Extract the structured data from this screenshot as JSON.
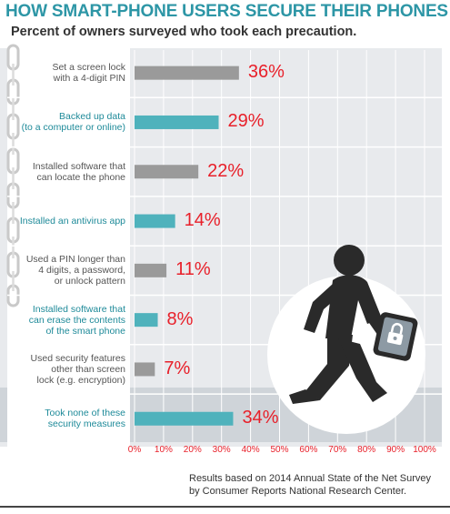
{
  "chart_data": {
    "type": "bar",
    "orientation": "horizontal",
    "title": "HOW SMART-PHONE USERS SECURE THEIR PHONES",
    "subtitle": "Percent of owners surveyed who took each precaution.",
    "categories": [
      "Set a screen lock\nwith a 4-digit PIN",
      "Backed up data\n(to a computer or online)",
      "Installed software that\ncan locate the phone",
      "Installed an antivirus app",
      "Used a PIN longer than\n4 digits, a password,\nor unlock pattern",
      "Installed software that\ncan erase the contents\nof the smart phone",
      "Used security features\nother than screen\nlock (e.g. encryption)",
      "Took none of these\nsecurity measures"
    ],
    "values": [
      36,
      29,
      22,
      14,
      11,
      8,
      7,
      34
    ],
    "value_labels": [
      "36%",
      "29%",
      "22%",
      "14%",
      "11%",
      "8%",
      "7%",
      "34%"
    ],
    "bar_colors": [
      "#9a9a9a",
      "#4fb2bc",
      "#9a9a9a",
      "#4fb2bc",
      "#9a9a9a",
      "#4fb2bc",
      "#9a9a9a",
      "#4fb2bc"
    ],
    "label_colors": [
      "#555555",
      "#1e8a99",
      "#555555",
      "#1e8a99",
      "#555555",
      "#1e8a99",
      "#555555",
      "#1e8a99"
    ],
    "xlim": [
      0,
      100
    ],
    "xticks": [
      0,
      10,
      20,
      30,
      40,
      50,
      60,
      70,
      80,
      90,
      100
    ],
    "xtick_labels": [
      "0%",
      "10%",
      "20%",
      "30%",
      "40%",
      "50%",
      "60%",
      "70%",
      "80%",
      "90%",
      "100%"
    ],
    "xlabel": "",
    "ylabel": "",
    "grid": true,
    "legend": "none",
    "value_label_color": "#e8202a"
  },
  "source_note": "Results based on 2014 Annual State of the Net Survey\nby Consumer Reports National Research Center.",
  "illustration": "person-walking-with-locked-tablet-icon",
  "colors": {
    "title": "#2d96a6",
    "panel": "#e8eaed",
    "highlight_band": "#cfd4d9",
    "figure": "#2a2a2a",
    "circle": "#ffffff"
  }
}
